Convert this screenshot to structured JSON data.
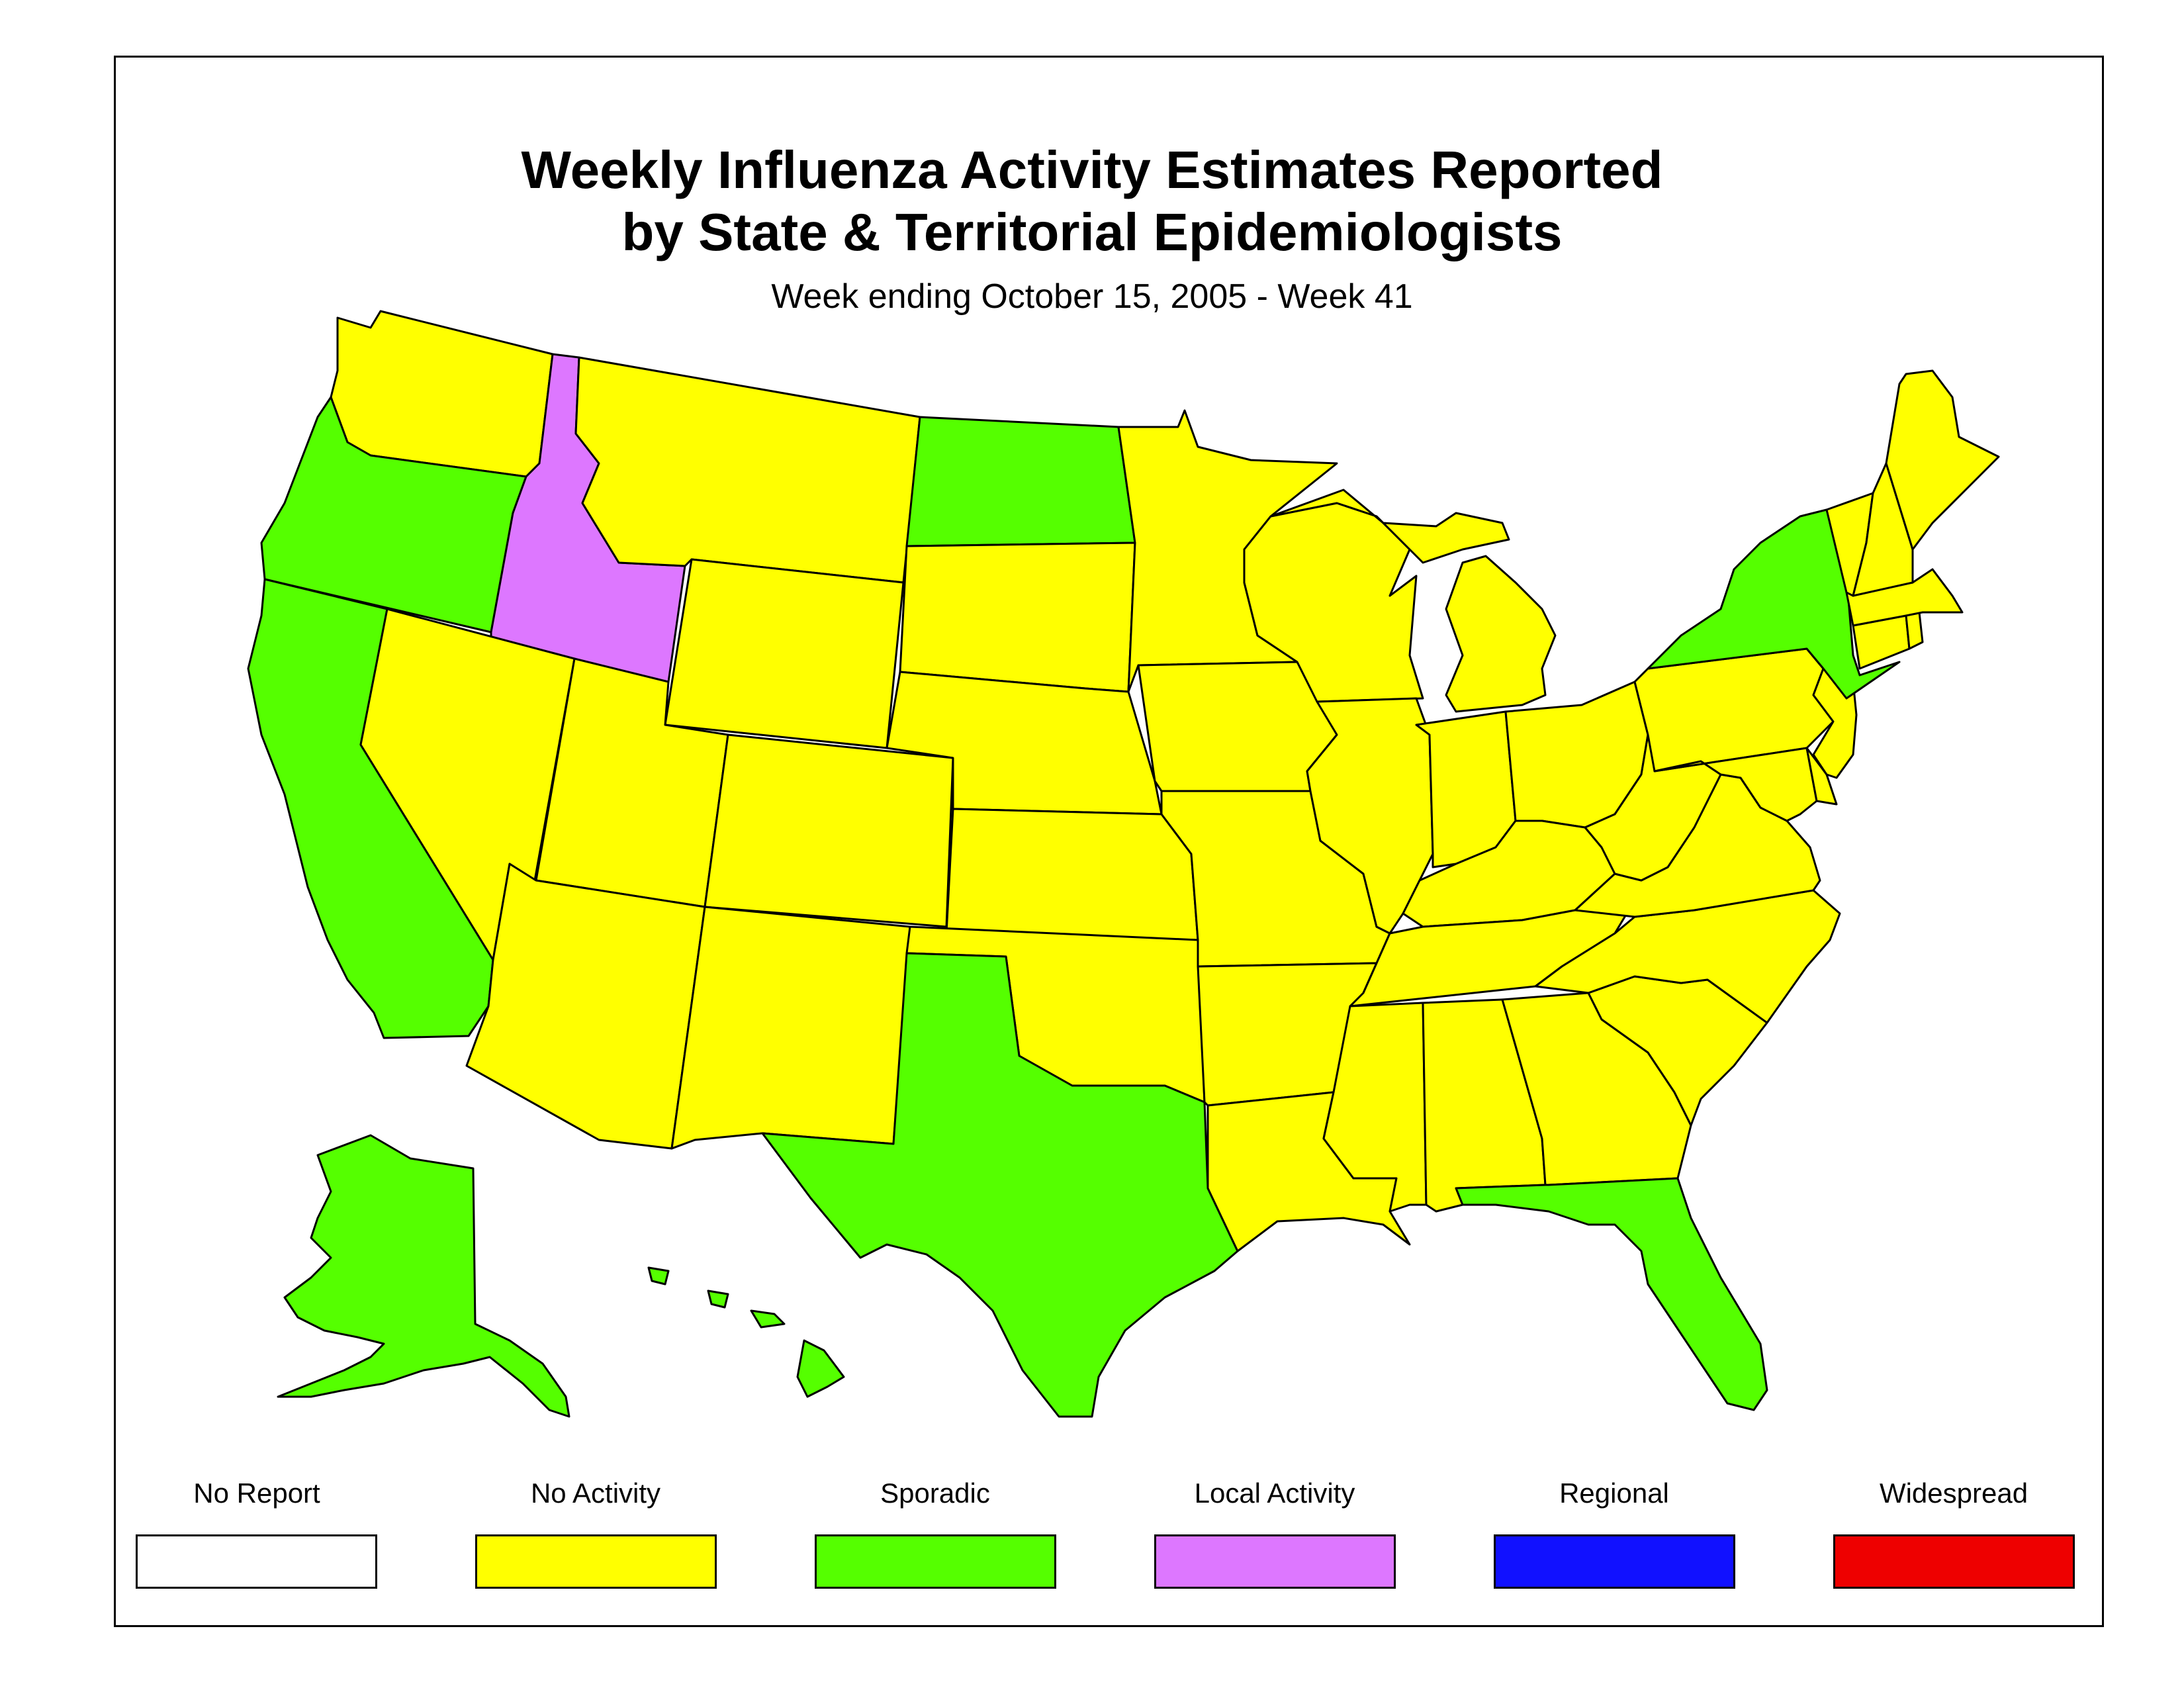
{
  "title": {
    "line1": "Weekly Influenza Activity Estimates Reported",
    "line2": "by State & Territorial Epidemiologists",
    "subtitle": "Week ending October 15, 2005 - Week 41"
  },
  "colors": {
    "no_report": "#ffffff",
    "no_activity": "#ffff00",
    "sporadic": "#55ff00",
    "local_activity": "#dd77ff",
    "regional": "#1111ff",
    "widespread": "#ee0000"
  },
  "legend": [
    {
      "label": "No Report",
      "color": "#ffffff"
    },
    {
      "label": "No Activity",
      "color": "#ffff00"
    },
    {
      "label": "Sporadic",
      "color": "#55ff00"
    },
    {
      "label": "Local Activity",
      "color": "#dd77ff"
    },
    {
      "label": "Regional",
      "color": "#1111ff"
    },
    {
      "label": "Widespread",
      "color": "#ee0000"
    }
  ],
  "states": {
    "WA": "No Activity",
    "OR": "Sporadic",
    "CA": "Sporadic",
    "ID": "Local Activity",
    "NV": "No Activity",
    "MT": "No Activity",
    "WY": "No Activity",
    "UT": "No Activity",
    "AZ": "No Activity",
    "CO": "No Activity",
    "NM": "No Activity",
    "ND": "Sporadic",
    "SD": "No Activity",
    "NE": "No Activity",
    "KS": "No Activity",
    "OK": "No Activity",
    "TX": "Sporadic",
    "MN": "No Activity",
    "IA": "No Activity",
    "MO": "No Activity",
    "AR": "No Activity",
    "LA": "No Activity",
    "WI": "No Activity",
    "IL": "No Activity",
    "MI": "No Activity",
    "IN": "No Activity",
    "OH": "No Activity",
    "KY": "No Activity",
    "TN": "No Activity",
    "MS": "No Activity",
    "AL": "No Activity",
    "GA": "No Activity",
    "FL": "Sporadic",
    "SC": "No Activity",
    "NC": "No Activity",
    "VA": "No Activity",
    "WV": "No Activity",
    "PA": "No Activity",
    "NY": "Sporadic",
    "NJ": "No Activity",
    "DE": "No Activity",
    "MD": "No Activity",
    "CT": "No Activity",
    "RI": "No Activity",
    "MA": "No Activity",
    "VT": "No Activity",
    "NH": "No Activity",
    "ME": "No Activity",
    "AK": "Sporadic",
    "HI": "Sporadic"
  }
}
